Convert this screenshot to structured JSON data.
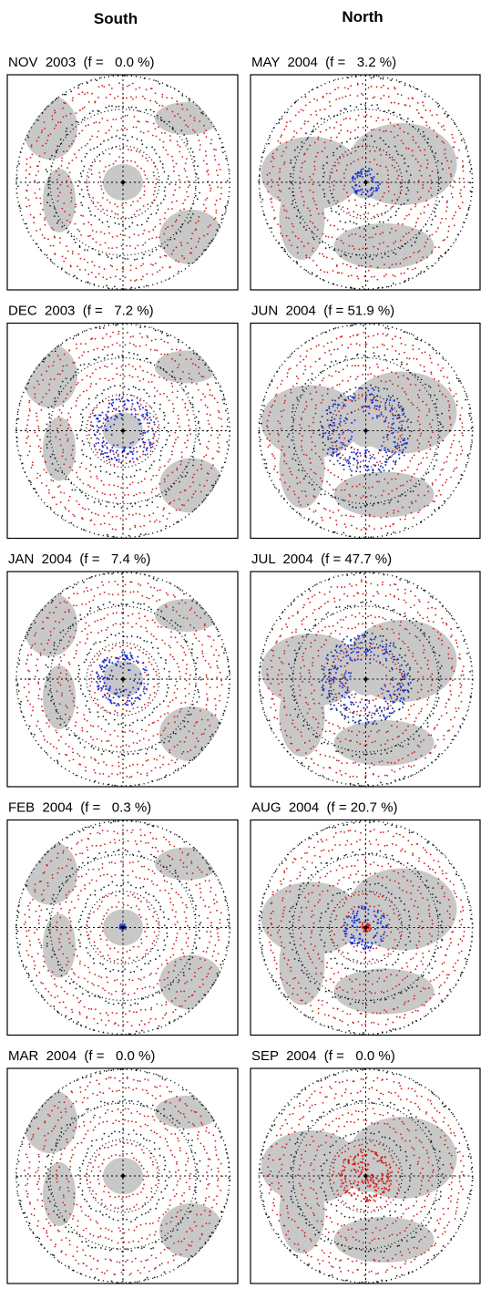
{
  "header": {
    "columns": [
      "South",
      "North"
    ]
  },
  "panels": [
    {
      "label": "NOV  2003  (f =   0.0 %)"
    },
    {
      "label": "MAY  2004  (f =   3.2 %)"
    },
    {
      "label": "DEC  2003  (f =   7.2 %)"
    },
    {
      "label": "JUN  2004  (f = 51.9 %)"
    },
    {
      "label": "JAN  2004  (f =   7.4 %)"
    },
    {
      "label": "JUL  2004  (f = 47.7 %)"
    },
    {
      "label": "FEB  2004  (f =   0.3 %)"
    },
    {
      "label": "AUG  2004  (f = 20.7 %)"
    },
    {
      "label": "MAR  2004  (f =   0.0 %)"
    },
    {
      "label": "SEP  2004  (f =   0.0 %)"
    }
  ]
}
